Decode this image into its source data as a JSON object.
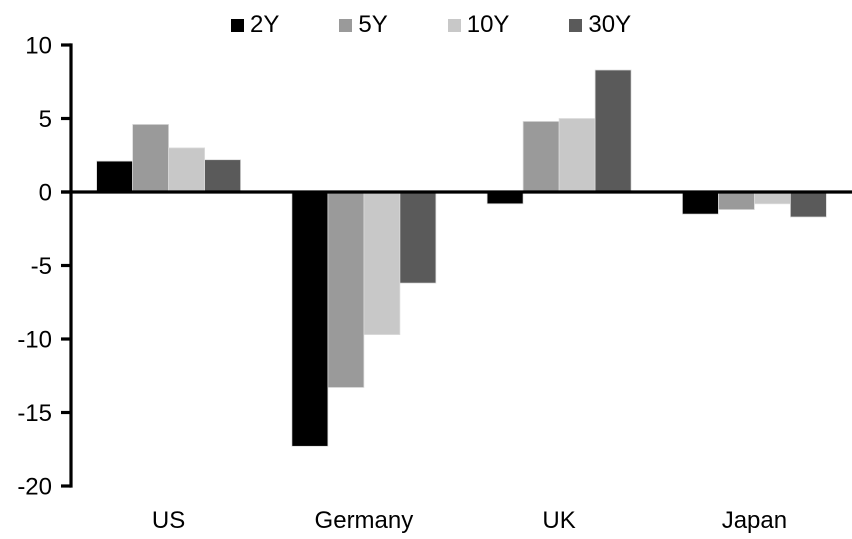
{
  "figure": {
    "background": "#ffffff",
    "axis_color": "#000000"
  },
  "chart_data": {
    "type": "bar",
    "title": "",
    "xlabel": "",
    "ylabel": "",
    "categories": [
      "US",
      "Germany",
      "UK",
      "Japan"
    ],
    "series": [
      {
        "name": "2Y",
        "color": "#000000",
        "values": [
          2.1,
          -17.3,
          -0.8,
          -1.5
        ]
      },
      {
        "name": "5Y",
        "color": "#9a9a9a",
        "values": [
          4.6,
          -13.3,
          4.8,
          -1.2
        ]
      },
      {
        "name": "10Y",
        "color": "#c8c8c8",
        "values": [
          3.0,
          -9.7,
          5.0,
          -0.8
        ]
      },
      {
        "name": "30Y",
        "color": "#5a5a5a",
        "values": [
          2.2,
          -6.2,
          8.3,
          -1.7
        ]
      }
    ],
    "ylim": [
      -20,
      10
    ],
    "yticks": [
      10,
      5,
      0,
      -5,
      -10,
      -15,
      -20
    ],
    "grid": false,
    "legend_position": "top"
  }
}
